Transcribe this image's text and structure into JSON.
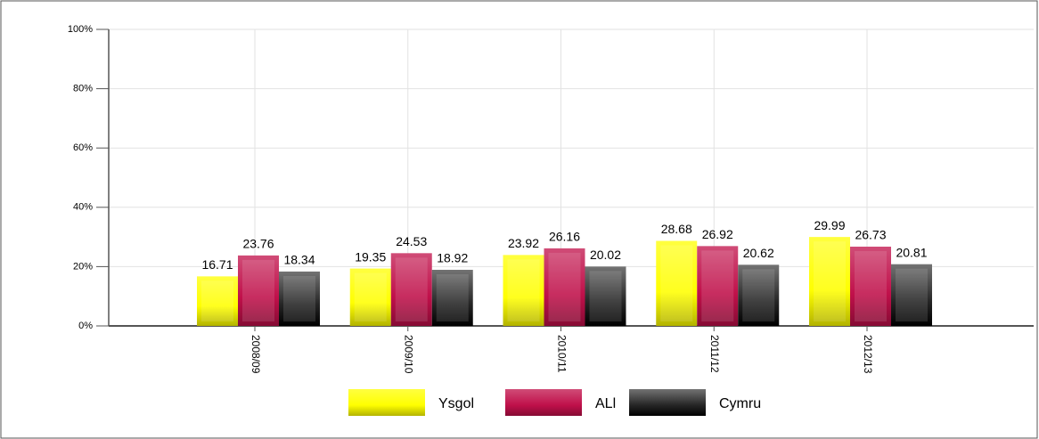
{
  "chart_data": {
    "type": "bar",
    "categories": [
      "2008/09",
      "2009/10",
      "2010/11",
      "2011/12",
      "2012/13"
    ],
    "series": [
      {
        "name": "Ysgol",
        "color": "#ffff00",
        "values": [
          16.71,
          19.35,
          23.92,
          28.68,
          29.99
        ]
      },
      {
        "name": "ALl",
        "color": "#c0104a",
        "values": [
          23.76,
          24.53,
          26.16,
          26.92,
          26.73
        ]
      },
      {
        "name": "Cymru",
        "color": "#000000",
        "values": [
          18.34,
          18.92,
          20.02,
          20.62,
          20.81
        ]
      }
    ],
    "ylim": [
      0,
      100
    ],
    "yticks": [
      {
        "value": 0,
        "label": "0%"
      },
      {
        "value": 20,
        "label": "20%"
      },
      {
        "value": 40,
        "label": "40%"
      },
      {
        "value": 60,
        "label": "60%"
      },
      {
        "value": 80,
        "label": "80%"
      },
      {
        "value": 100,
        "label": "100%"
      }
    ],
    "grid": true,
    "legend": "bottom"
  }
}
